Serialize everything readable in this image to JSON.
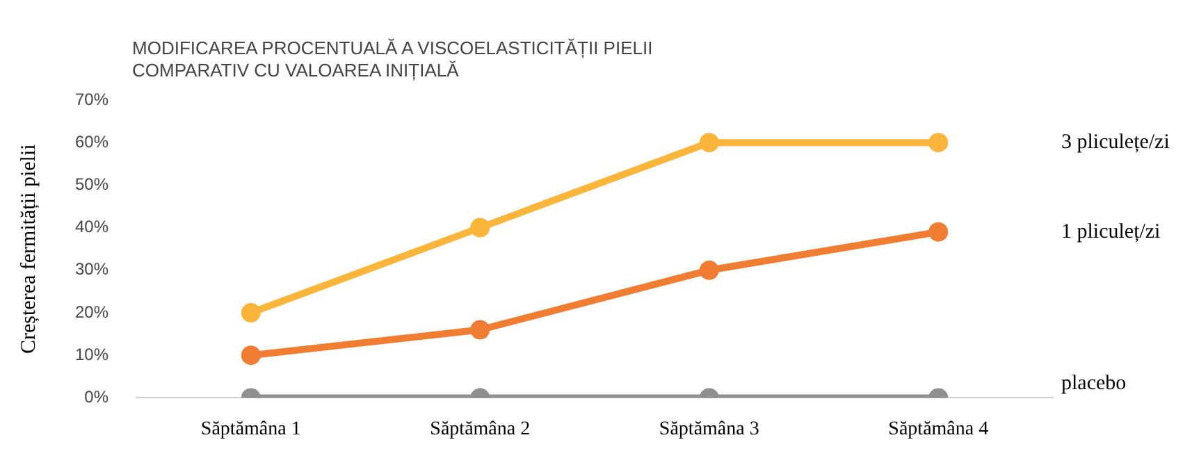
{
  "chart_data": {
    "type": "line",
    "title": "MODIFICAREA PROCENTUALĂ A VISCOELASTICITĂȚII PIELII COMPARATIV CU VALOAREA INIȚIALĂ",
    "ylabel": "Creșterea fermității pielii",
    "categories": [
      "Săptămâna 1",
      "Săptămâna 2",
      "Săptămâna 3",
      "Săptămâna 4"
    ],
    "series": [
      {
        "name": "3 pliculețe/zi",
        "color": "#fcb53b",
        "values": [
          20,
          40,
          60,
          60
        ]
      },
      {
        "name": "1 pliculeț/zi",
        "color": "#f07d31",
        "values": [
          10,
          16,
          30,
          39
        ]
      },
      {
        "name": "placebo",
        "color": "#8f8f8f",
        "values": [
          0,
          0,
          0,
          0
        ]
      }
    ],
    "ylim": [
      0,
      70
    ],
    "yticks": [
      {
        "value": 0,
        "label": "0%"
      },
      {
        "value": 10,
        "label": "10%"
      },
      {
        "value": 20,
        "label": "20%"
      },
      {
        "value": 30,
        "label": "30%"
      },
      {
        "value": 40,
        "label": "40%"
      },
      {
        "value": 50,
        "label": "50%"
      },
      {
        "value": 60,
        "label": "60%"
      },
      {
        "value": 70,
        "label": "70%"
      }
    ],
    "grid": false,
    "legend": false,
    "marker": "circle",
    "line_style": "solid"
  }
}
